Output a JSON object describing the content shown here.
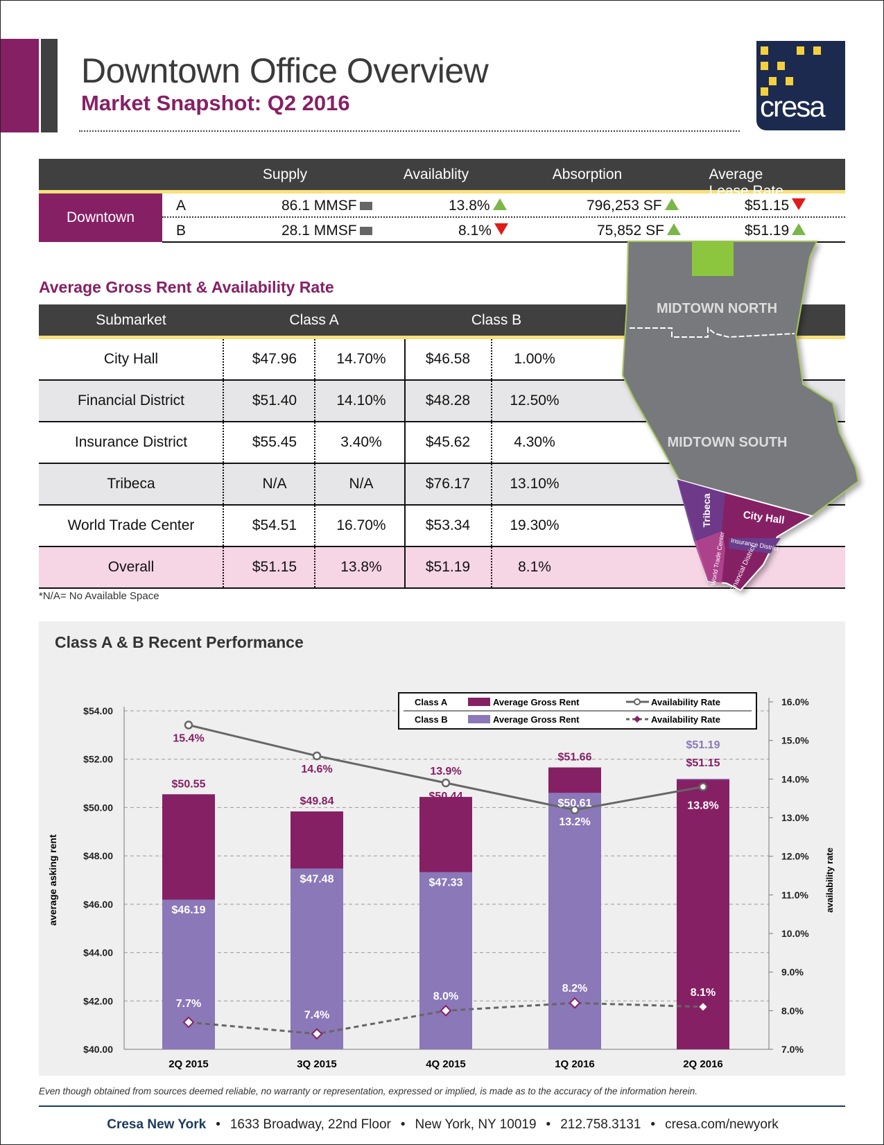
{
  "header": {
    "title": "Downtown Office Overview",
    "subtitle": "Market Snapshot: Q2 2016",
    "logo_text": "cresa"
  },
  "summary": {
    "columns": [
      "Supply",
      "Availablity",
      "Absorption",
      "Average Lease Rate"
    ],
    "market": "Downtown",
    "rows": [
      {
        "class": "A",
        "supply": "86.1 MMSF",
        "supply_trend": "flat",
        "availability": "13.8%",
        "availability_trend": "up",
        "absorption": "796,253 SF",
        "absorption_trend": "up",
        "lease_rate": "$51.15",
        "lease_trend": "down"
      },
      {
        "class": "B",
        "supply": "28.1 MMSF",
        "supply_trend": "flat",
        "availability": "8.1%",
        "availability_trend": "down",
        "absorption": "75,852 SF",
        "absorption_trend": "up",
        "lease_rate": "$51.19",
        "lease_trend": "up"
      }
    ]
  },
  "rent_table": {
    "title": "Average Gross Rent & Availability Rate",
    "columns": [
      "Submarket",
      "Class A",
      "Class B"
    ],
    "rows": [
      [
        "City Hall",
        "$47.96",
        "14.70%",
        "$46.58",
        "1.00%"
      ],
      [
        "Financial District",
        "$51.40",
        "14.10%",
        "$48.28",
        "12.50%"
      ],
      [
        "Insurance District",
        "$55.45",
        "3.40%",
        "$45.62",
        "4.30%"
      ],
      [
        "Tribeca",
        "N/A",
        "N/A",
        "$76.17",
        "13.10%"
      ],
      [
        "World Trade Center",
        "$54.51",
        "16.70%",
        "$53.34",
        "19.30%"
      ],
      [
        "Overall",
        "$51.15",
        "13.8%",
        "$51.19",
        "8.1%"
      ]
    ],
    "note": "*N/A= No Available Space"
  },
  "map": {
    "labels": [
      "MIDTOWN NORTH",
      "MIDTOWN SOUTH",
      "Tribeca",
      "City Hall",
      "Insurance District",
      "World Trade Center",
      "Financial District"
    ]
  },
  "chart_title": "Class A & B Recent Performance",
  "chart_data": {
    "type": "bar",
    "categories": [
      "2Q 2015",
      "3Q 2015",
      "4Q 2015",
      "1Q 2016",
      "2Q 2016"
    ],
    "ylabel": "average asking rent",
    "y2label": "availability rate",
    "ylim": [
      40,
      54
    ],
    "y2lim": [
      7,
      16
    ],
    "grid": true,
    "legend": "top-right",
    "yticks": [
      "$40.00",
      "$42.00",
      "$44.00",
      "$46.00",
      "$48.00",
      "$50.00",
      "$52.00",
      "$54.00"
    ],
    "y2ticks": [
      "7.0%",
      "8.0%",
      "9.0%",
      "10.0%",
      "11.0%",
      "12.0%",
      "13.0%",
      "14.0%",
      "15.0%",
      "16.0%"
    ],
    "series": [
      {
        "name": "Class A Average Gross Rent",
        "type": "bar",
        "values": [
          50.55,
          49.84,
          50.44,
          51.66,
          51.15
        ],
        "labels": [
          "$50.55",
          "$49.84",
          "$50.44",
          "$51.66",
          "$51.15"
        ],
        "color": "#862065"
      },
      {
        "name": "Class B Average Gross Rent",
        "type": "bar",
        "values": [
          46.19,
          47.48,
          47.33,
          50.61,
          51.19
        ],
        "labels": [
          "$46.19",
          "$47.48",
          "$47.33",
          "$50.61",
          "$51.19"
        ],
        "color": "#8a78b8"
      },
      {
        "name": "Class A Availability Rate",
        "type": "line",
        "axis": "right",
        "values": [
          15.4,
          14.6,
          13.9,
          13.2,
          13.8
        ],
        "labels": [
          "15.4%",
          "14.6%",
          "13.9%",
          "13.2%",
          "13.8%"
        ],
        "color": "#666666"
      },
      {
        "name": "Class B Availability Rate",
        "type": "line",
        "axis": "right",
        "style": "dashed",
        "values": [
          7.7,
          7.4,
          8.0,
          8.2,
          8.1
        ],
        "labels": [
          "7.7%",
          "7.4%",
          "8.0%",
          "8.2%",
          "8.1%"
        ],
        "color": "#666666"
      }
    ],
    "legend_rows": [
      {
        "class": "Class A",
        "bar": "Average Gross Rent",
        "line": "Availability Rate"
      },
      {
        "class": "Class B",
        "bar": "Average Gross Rent",
        "line": "Availability Rate"
      }
    ]
  },
  "footer": {
    "disclaimer": "Even though obtained from sources deemed reliable, no warranty or representation, expressed or implied, is made as to the accuracy of the information herein.",
    "company": "Cresa New York",
    "address": "1633 Broadway, 22nd Floor",
    "city": "New York, NY 10019",
    "phone": "212.758.3131",
    "web": "cresa.com/newyork",
    "sep": "•"
  }
}
